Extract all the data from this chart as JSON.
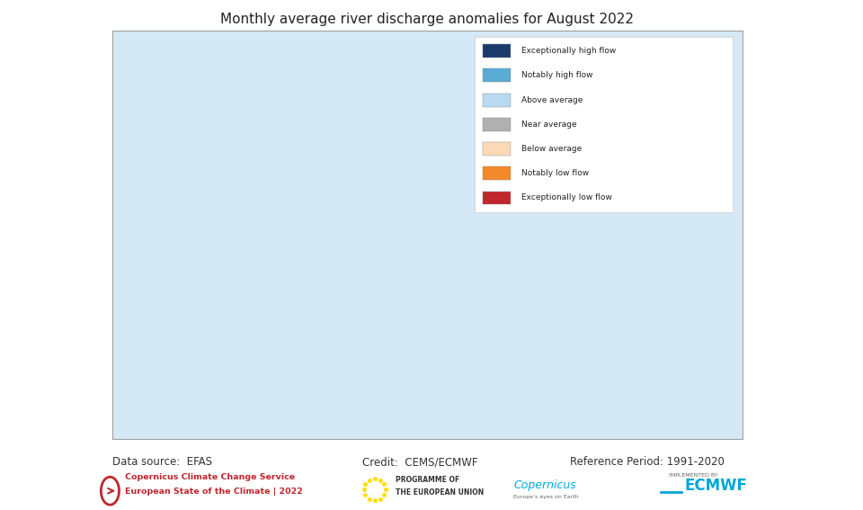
{
  "title": "Monthly average river discharge anomalies for August 2022",
  "title_fontsize": 11,
  "background_color": "#ffffff",
  "land_color": "#f0f0eb",
  "border_color": "#aaaaaa",
  "ocean_color": "#d4e8f5",
  "legend_items": [
    {
      "label": "Exceptionally high flow",
      "color": "#1a3a6b"
    },
    {
      "label": "Notably high flow",
      "color": "#5bacd4"
    },
    {
      "label": "Above average",
      "color": "#b8d9f0"
    },
    {
      "label": "Near average",
      "color": "#b0b0b0"
    },
    {
      "label": "Below average",
      "color": "#fcd9b6"
    },
    {
      "label": "Notably low flow",
      "color": "#f5882a"
    },
    {
      "label": "Exceptionally low flow",
      "color": "#c0272d"
    }
  ],
  "river_color": "#f5882a",
  "footer_left": "Data source:  EFAS",
  "footer_center": "Credit:  CEMS/ECMWF",
  "footer_right": "Reference Period: 1991-2020",
  "footer_fontsize": 8.5,
  "copernicus_text1": "Copernicus Climate Change Service",
  "copernicus_text2": "European State of the Climate | 2022",
  "eu_text1": "PROGRAMME OF",
  "eu_text2": "THE EUROPEAN UNION",
  "implemented_by": "IMPLEMENTED BY",
  "ecmwf_text": "ECMWF",
  "copernicus_color": "#c0272d",
  "ecmwf_color": "#00a6d6",
  "map_extent": [
    -25,
    45,
    32,
    72
  ]
}
